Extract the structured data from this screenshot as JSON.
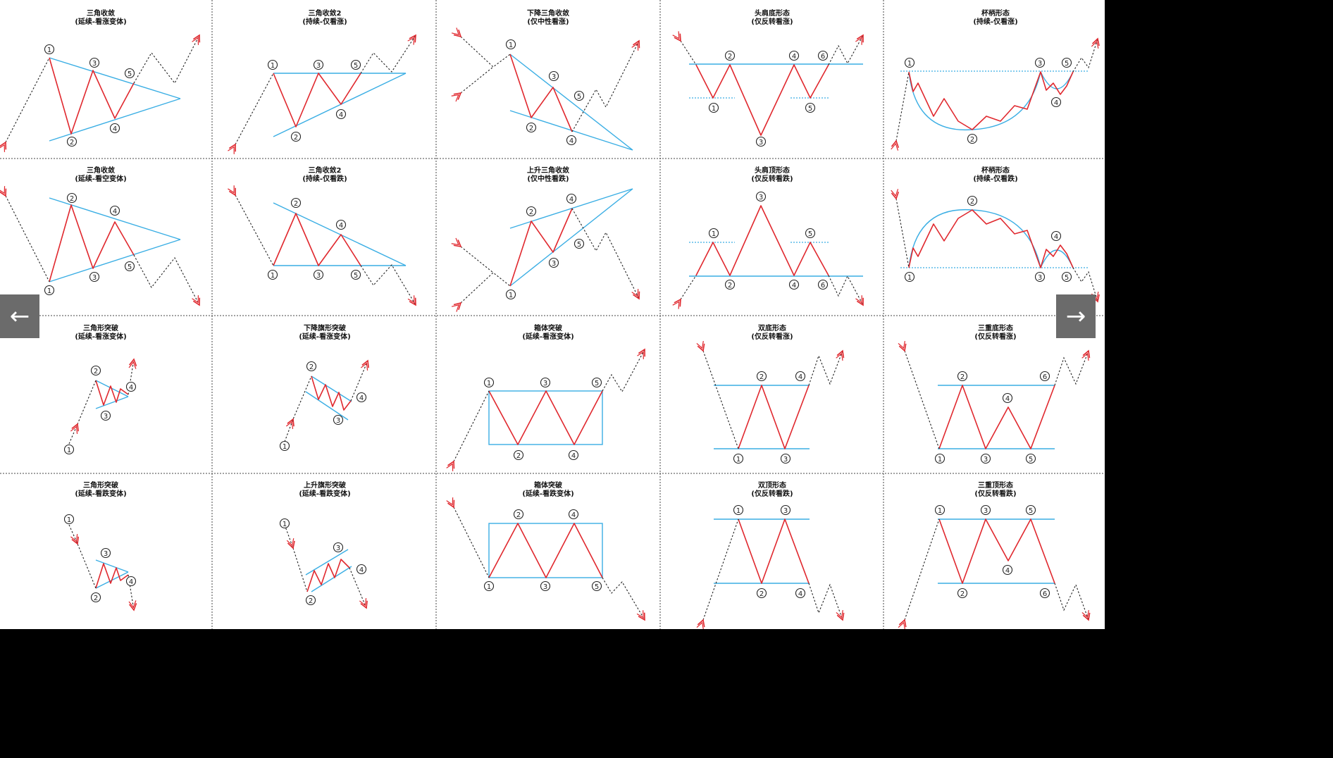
{
  "colors": {
    "pattern": "#e0282e",
    "boundary": "#3aaee4",
    "path": "#222222",
    "arrow": "#e0282e",
    "grid": "#444444"
  },
  "nav": {
    "prev_glyph": "←",
    "next_glyph": "→"
  },
  "cells": [
    {
      "title": "三角收敛",
      "subtitle": "(延续-看涨变体)"
    },
    {
      "title": "三角收敛2",
      "subtitle": "(持续-仅看涨)"
    },
    {
      "title": "下降三角收敛",
      "subtitle": "(仅中性看涨)"
    },
    {
      "title": "头肩底形态",
      "subtitle": "(仅反转看涨)"
    },
    {
      "title": "杯柄形态",
      "subtitle": "(持续-仅看涨)"
    },
    {
      "title": "三角收敛",
      "subtitle": "(延续-看空变体)"
    },
    {
      "title": "三角收敛2",
      "subtitle": "(持续-仅看跌)"
    },
    {
      "title": "上升三角收敛",
      "subtitle": "(仅中性看跌)"
    },
    {
      "title": "头肩顶形态",
      "subtitle": "(仅反转看跌)"
    },
    {
      "title": "杯柄形态",
      "subtitle": "(持续-仅看跌)"
    },
    {
      "title": "三角形突破",
      "subtitle": "(延续-看涨变体)"
    },
    {
      "title": "下降旗形突破",
      "subtitle": "(延续-看涨变体)"
    },
    {
      "title": "箱体突破",
      "subtitle": "(延续-看涨变体)"
    },
    {
      "title": "双底形态",
      "subtitle": "(仅反转看涨)"
    },
    {
      "title": "三重底形态",
      "subtitle": "(仅反转看涨)"
    },
    {
      "title": "三角形突破",
      "subtitle": "(延续-看跌变体)"
    },
    {
      "title": "上升旗形突破",
      "subtitle": "(延续-看跌变体)"
    },
    {
      "title": "箱体突破",
      "subtitle": "(延续-看跌变体)"
    },
    {
      "title": "双顶形态",
      "subtitle": "(仅反转看跌)"
    },
    {
      "title": "三重顶形态",
      "subtitle": "(仅反转看跌)"
    }
  ],
  "point_labels": [
    "①",
    "②",
    "③",
    "④",
    "⑤",
    "⑥"
  ]
}
